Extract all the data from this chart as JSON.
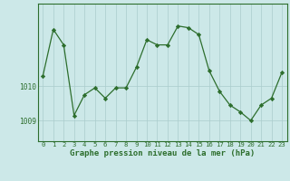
{
  "x": [
    0,
    1,
    2,
    3,
    4,
    5,
    6,
    7,
    8,
    9,
    10,
    11,
    12,
    13,
    14,
    15,
    16,
    17,
    18,
    19,
    20,
    21,
    22,
    23
  ],
  "y": [
    1010.3,
    1011.65,
    1011.2,
    1009.15,
    1009.75,
    1009.95,
    1009.65,
    1009.95,
    1009.95,
    1010.55,
    1011.35,
    1011.2,
    1011.2,
    1011.75,
    1011.7,
    1011.5,
    1010.45,
    1009.85,
    1009.45,
    1009.25,
    1009.0,
    1009.45,
    1009.65,
    1010.4
  ],
  "yticks": [
    1009,
    1010
  ],
  "xticks": [
    0,
    1,
    2,
    3,
    4,
    5,
    6,
    7,
    8,
    9,
    10,
    11,
    12,
    13,
    14,
    15,
    16,
    17,
    18,
    19,
    20,
    21,
    22,
    23
  ],
  "line_color": "#2d6e2d",
  "marker_color": "#2d6e2d",
  "bg_color": "#cce8e8",
  "grid_color": "#aacccc",
  "xlabel": "Graphe pression niveau de la mer (hPa)",
  "ylim_min": 1008.4,
  "ylim_max": 1012.4,
  "title_fontsize": 6.0,
  "tick_fontsize": 5.2,
  "xlabel_fontsize": 6.5
}
